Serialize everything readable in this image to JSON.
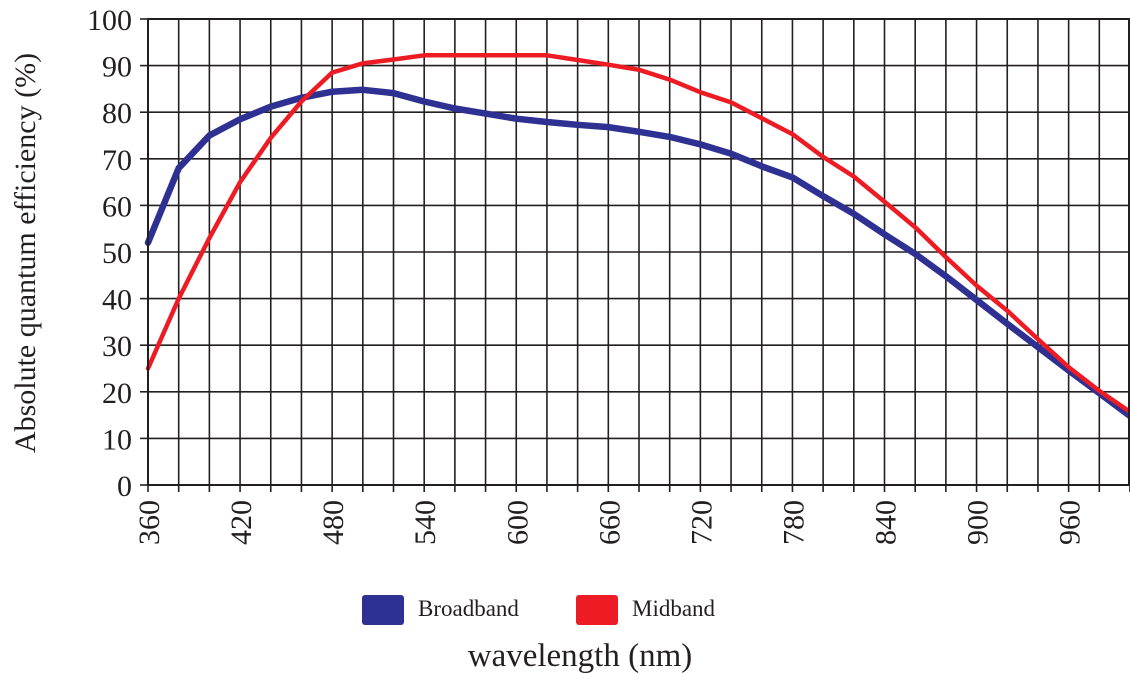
{
  "chart_data": {
    "type": "line",
    "title": "",
    "xlabel": "wavelength (nm)",
    "ylabel": "Absolute quantum efficiency (%)",
    "xlim": [
      360,
      1000
    ],
    "ylim": [
      0,
      100
    ],
    "x_ticks": [
      360,
      420,
      480,
      540,
      600,
      660,
      720,
      780,
      840,
      900,
      960
    ],
    "x_minor_step": 20,
    "y_ticks": [
      0,
      10,
      20,
      30,
      40,
      50,
      60,
      70,
      80,
      90,
      100
    ],
    "grid": true,
    "legend_position": "bottom-center",
    "series": [
      {
        "name": "Broadband",
        "color": "#2e3192",
        "x": [
          360,
          380,
          400,
          420,
          440,
          460,
          480,
          500,
          520,
          540,
          560,
          580,
          600,
          620,
          640,
          660,
          680,
          700,
          720,
          740,
          760,
          780,
          800,
          820,
          840,
          860,
          880,
          900,
          920,
          940,
          960,
          980,
          1000
        ],
        "y": [
          52,
          68,
          75,
          78.5,
          81.2,
          83.1,
          84.4,
          84.8,
          84.1,
          82.3,
          80.8,
          79.7,
          78.6,
          77.9,
          77.3,
          76.8,
          75.8,
          74.7,
          73.1,
          71.1,
          68.4,
          66,
          62,
          58.2,
          53.8,
          49.6,
          44.8,
          39.7,
          34.6,
          29.6,
          24.6,
          19.7,
          14.8
        ]
      },
      {
        "name": "Midband",
        "color": "#ed1c24",
        "x": [
          360,
          380,
          400,
          420,
          440,
          460,
          480,
          500,
          520,
          540,
          560,
          580,
          600,
          620,
          640,
          660,
          680,
          700,
          720,
          740,
          760,
          780,
          800,
          820,
          840,
          860,
          880,
          900,
          920,
          940,
          960,
          980,
          1000
        ],
        "y": [
          25,
          40,
          53,
          65,
          74.5,
          82.3,
          88.5,
          90.5,
          91.3,
          92.2,
          92.2,
          92.2,
          92.2,
          92.2,
          91.2,
          90.2,
          89.1,
          87,
          84.3,
          82.1,
          78.7,
          75.3,
          70.4,
          66.2,
          60.8,
          55.3,
          48.9,
          42.8,
          37.4,
          31.3,
          25.3,
          20.2,
          15.7
        ]
      }
    ]
  }
}
